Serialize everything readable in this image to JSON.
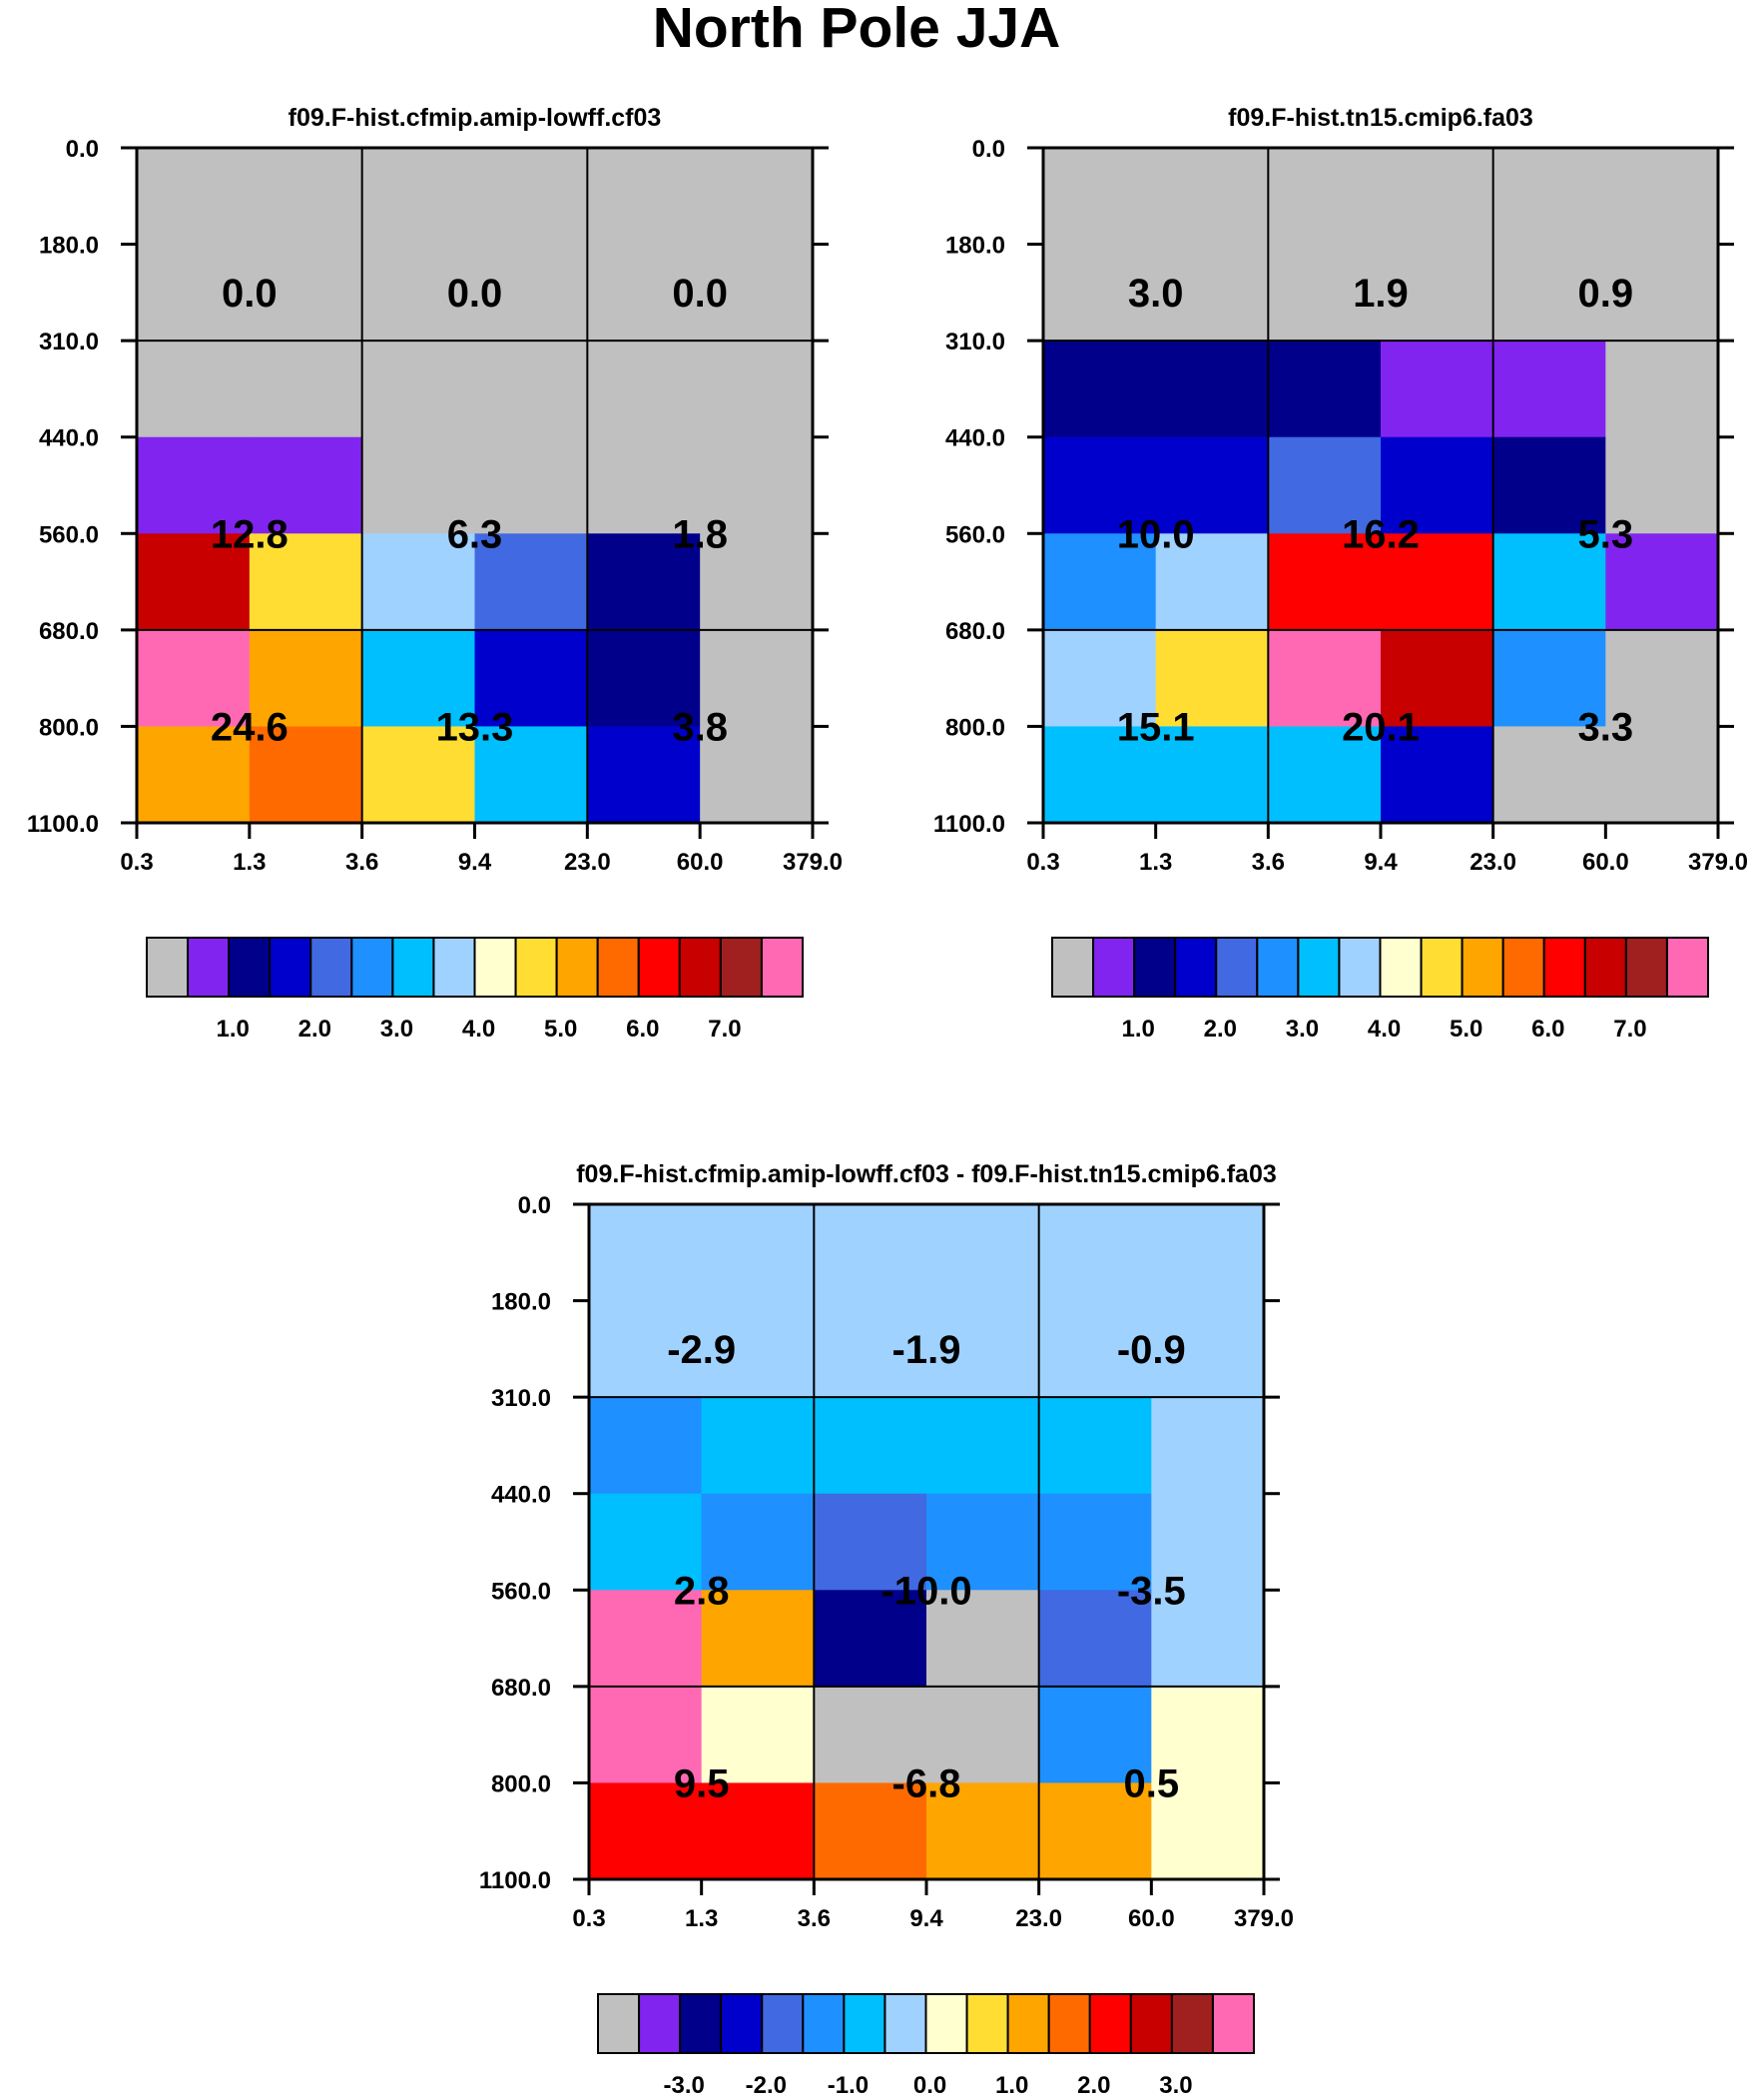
{
  "title": "North Pole JJA",
  "colors": {
    "palette": [
      "#c0c0c0",
      "#8224f0",
      "#00008b",
      "#0000cd",
      "#4169e1",
      "#1e90ff",
      "#00bfff",
      "#a0d2ff",
      "#ffffd0",
      "#ffdd33",
      "#ffa500",
      "#ff6a00",
      "#ff0000",
      "#c80000",
      "#a02020",
      "#ff69b4"
    ],
    "grid": "#000000"
  },
  "chart_data": [
    {
      "type": "heatmap",
      "title": "f09.F-hist.cfmip.amip-lowff.cf03",
      "x_ticks": [
        "0.3",
        "1.3",
        "3.6",
        "9.4",
        "23.0",
        "60.0",
        "379.0"
      ],
      "y_ticks": [
        "0.0",
        "180.0",
        "310.0",
        "440.0",
        "560.0",
        "680.0",
        "800.0",
        "1100.0"
      ],
      "colorbar_labels": [
        "1.0",
        "2.0",
        "3.0",
        "4.0",
        "5.0",
        "6.0",
        "7.0"
      ],
      "cell_colors": [
        [
          0,
          0,
          0,
          0,
          0,
          0
        ],
        [
          0,
          0,
          0,
          0,
          0,
          0
        ],
        [
          1,
          1,
          0,
          0,
          0,
          0
        ],
        [
          13,
          9,
          7,
          4,
          2,
          0
        ],
        [
          15,
          10,
          6,
          3,
          2,
          0
        ],
        [
          10,
          11,
          9,
          6,
          3,
          0
        ]
      ],
      "block_values": [
        [
          "0.0",
          "0.0",
          "0.0"
        ],
        [
          "12.8",
          "6.3",
          "1.8"
        ],
        [
          "24.6",
          "13.3",
          "3.8"
        ]
      ]
    },
    {
      "type": "heatmap",
      "title": "f09.F-hist.tn15.cmip6.fa03",
      "x_ticks": [
        "0.3",
        "1.3",
        "3.6",
        "9.4",
        "23.0",
        "60.0",
        "379.0"
      ],
      "y_ticks": [
        "0.0",
        "180.0",
        "310.0",
        "440.0",
        "560.0",
        "680.0",
        "800.0",
        "1100.0"
      ],
      "colorbar_labels": [
        "1.0",
        "2.0",
        "3.0",
        "4.0",
        "5.0",
        "6.0",
        "7.0"
      ],
      "cell_colors": [
        [
          0,
          0,
          0,
          0,
          0,
          0
        ],
        [
          2,
          2,
          2,
          1,
          1,
          0
        ],
        [
          3,
          3,
          4,
          3,
          2,
          0
        ],
        [
          5,
          7,
          12,
          12,
          6,
          1
        ],
        [
          7,
          9,
          15,
          13,
          5,
          0
        ],
        [
          6,
          6,
          6,
          3,
          0,
          0
        ]
      ],
      "block_values": [
        [
          "3.0",
          "1.9",
          "0.9"
        ],
        [
          "10.0",
          "16.2",
          "5.3"
        ],
        [
          "15.1",
          "20.1",
          "3.3"
        ]
      ]
    },
    {
      "type": "heatmap",
      "title": "f09.F-hist.cfmip.amip-lowff.cf03 - f09.F-hist.tn15.cmip6.fa03",
      "x_ticks": [
        "0.3",
        "1.3",
        "3.6",
        "9.4",
        "23.0",
        "60.0",
        "379.0"
      ],
      "y_ticks": [
        "0.0",
        "180.0",
        "310.0",
        "440.0",
        "560.0",
        "680.0",
        "800.0",
        "1100.0"
      ],
      "colorbar_labels": [
        "-3.0",
        "-2.0",
        "-1.0",
        "0.0",
        "1.0",
        "2.0",
        "3.0"
      ],
      "cell_colors": [
        [
          7,
          7,
          7,
          7,
          7,
          7
        ],
        [
          5,
          6,
          6,
          6,
          6,
          7
        ],
        [
          6,
          5,
          4,
          5,
          5,
          7
        ],
        [
          15,
          10,
          2,
          0,
          4,
          7
        ],
        [
          15,
          8,
          0,
          0,
          5,
          8
        ],
        [
          12,
          12,
          11,
          10,
          10,
          8
        ]
      ],
      "block_values": [
        [
          "-2.9",
          "-1.9",
          "-0.9"
        ],
        [
          "2.8",
          "-10.0",
          "-3.5"
        ],
        [
          "9.5",
          "-6.8",
          "0.5"
        ]
      ]
    }
  ]
}
